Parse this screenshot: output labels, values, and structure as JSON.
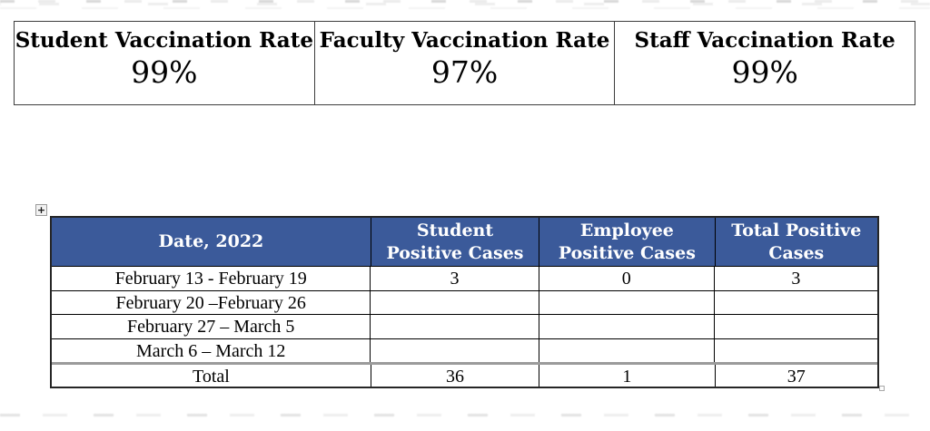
{
  "vaccination_summary": {
    "cells": [
      {
        "label": "Student Vaccination Rate",
        "value": "99%"
      },
      {
        "label": "Faculty Vaccination Rate",
        "value": "97%"
      },
      {
        "label": "Staff Vaccination Rate",
        "value": "99%"
      }
    ]
  },
  "cases_table": {
    "move_handle_glyph": "+",
    "columns": [
      "Date, 2022",
      "Student Positive Cases",
      "Employee Positive Cases",
      "Total Positive Cases"
    ],
    "rows": [
      {
        "date": "February 13 - February 19",
        "student": "3",
        "employee": "0",
        "total": "3"
      },
      {
        "date": "February 20 –February 26",
        "student": "",
        "employee": "",
        "total": ""
      },
      {
        "date": "February 27 – March 5",
        "student": "",
        "employee": "",
        "total": ""
      },
      {
        "date": "March 6 – March 12",
        "student": "",
        "employee": "",
        "total": ""
      }
    ],
    "total_row": {
      "label": "Total",
      "student": "36",
      "employee": "1",
      "total": "37"
    }
  },
  "colors": {
    "header_background": "#3b5a9a",
    "header_text": "#ffffff",
    "table_border": "#000000",
    "total_divider": "#9b9b9b"
  }
}
